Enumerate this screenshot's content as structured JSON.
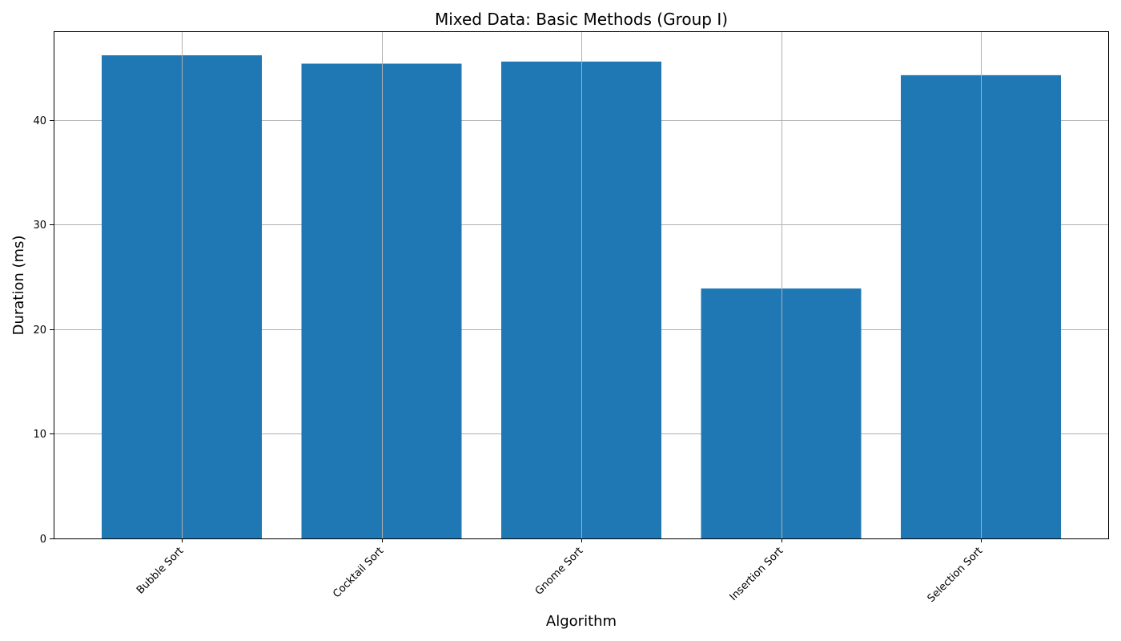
{
  "chart_data": {
    "type": "bar",
    "title": "Mixed Data: Basic Methods (Group I)",
    "xlabel": "Algorithm",
    "ylabel": "Duration (ms)",
    "categories": [
      "Bubble Sort",
      "Cocktail Sort",
      "Gnome Sort",
      "Insertion Sort",
      "Selection Sort"
    ],
    "values": [
      46.2,
      45.4,
      45.6,
      23.9,
      44.3
    ],
    "ylim": [
      0,
      48.5
    ],
    "yticks": [
      0,
      10,
      20,
      30,
      40
    ],
    "grid": true,
    "bar_color": "#1f77b4",
    "grid_color": "#b0b0b0"
  }
}
